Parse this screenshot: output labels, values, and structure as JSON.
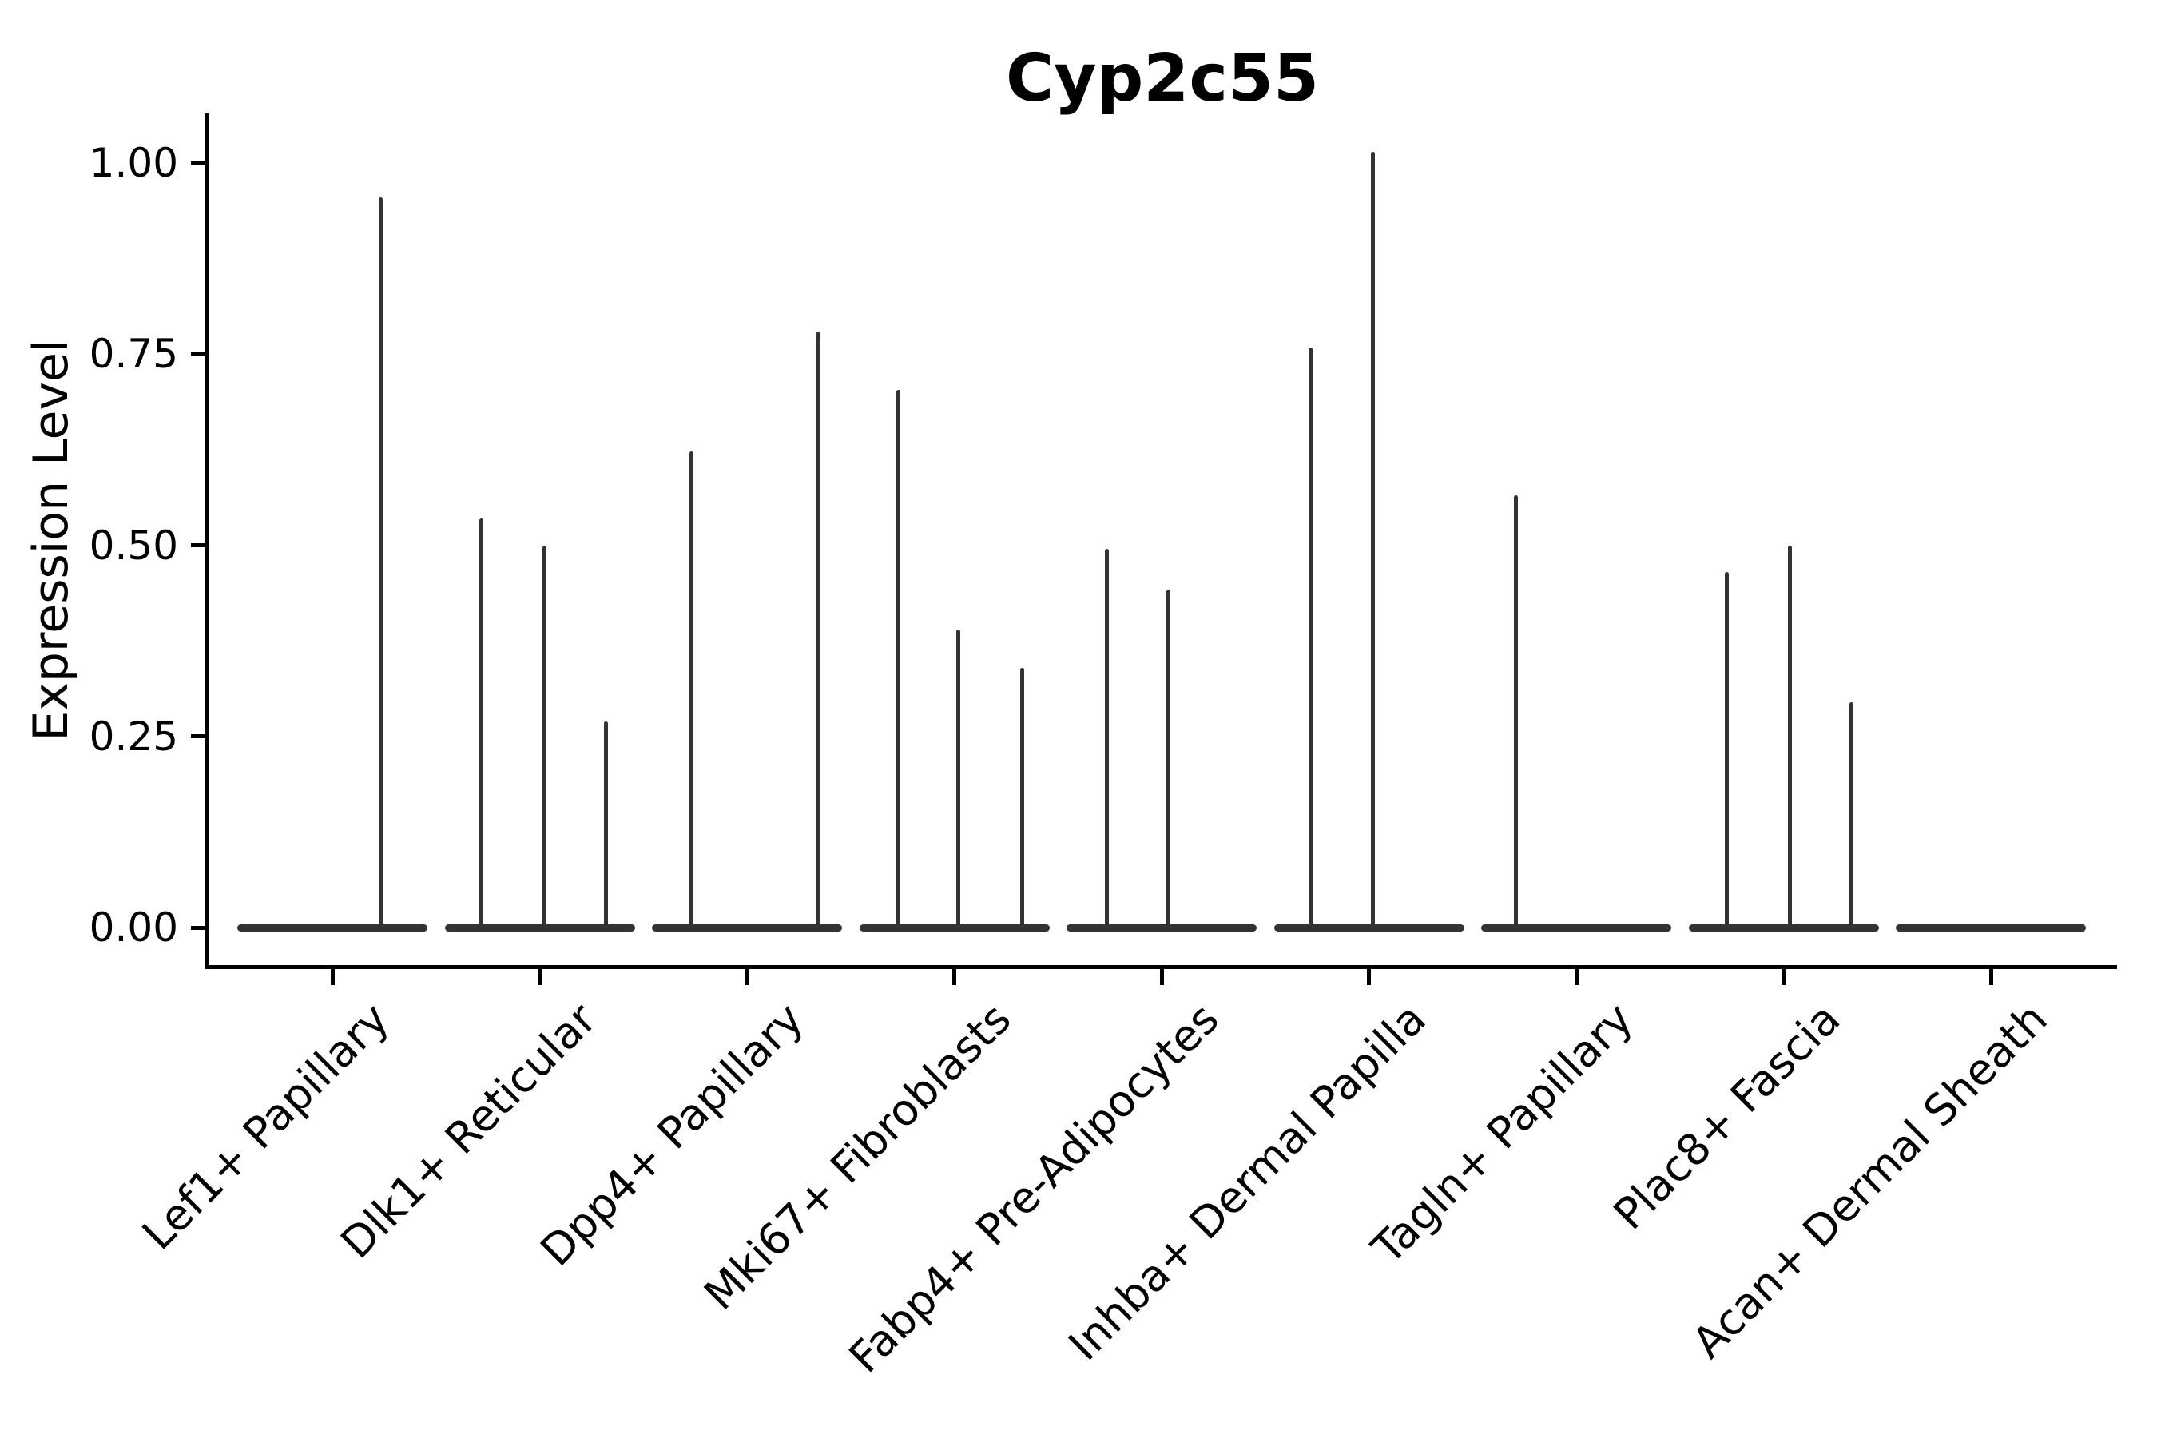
{
  "title": "Cyp2c55",
  "chart_data": {
    "type": "violin",
    "title": "Cyp2c55",
    "xlabel": "",
    "ylabel": "Expression Level",
    "categories": [
      "Lef1+ Papillary",
      "Dlk1+ Reticular",
      "Dpp4+ Papillary",
      "Mki67+ Fibroblasts",
      "Fabp4+ Pre-Adipocytes",
      "Inhba+ Dermal Papilla",
      "Tagln+ Papillary",
      "Plac8+ Fascia",
      "Acan+ Dermal Sheath"
    ],
    "violins": [
      [
        {
          "value": 0.955,
          "dx": 60
        }
      ],
      [
        {
          "value": 0.535,
          "dx": -73
        },
        {
          "value": 0.5,
          "dx": 6
        },
        {
          "value": 0.27,
          "dx": 83
        }
      ],
      [
        {
          "value": 0.623,
          "dx": -70
        },
        {
          "value": 0.78,
          "dx": 89
        }
      ],
      [
        {
          "value": 0.703,
          "dx": -70
        },
        {
          "value": 0.39,
          "dx": 5
        },
        {
          "value": 0.34,
          "dx": 85
        }
      ],
      [
        {
          "value": 0.495,
          "dx": -69
        },
        {
          "value": 0.442,
          "dx": 8
        }
      ],
      [
        {
          "value": 0.759,
          "dx": -73
        },
        {
          "value": 1.015,
          "dx": 5
        }
      ],
      [
        {
          "value": 0.565,
          "dx": -76
        }
      ],
      [
        {
          "value": 0.465,
          "dx": -71
        },
        {
          "value": 0.5,
          "dx": 8
        },
        {
          "value": 0.295,
          "dx": 85
        }
      ],
      []
    ],
    "baseline_value": 0,
    "ytick_values": [
      0,
      0.25,
      0.5,
      0.75,
      1.0
    ],
    "ytick_labels": [
      "0.00",
      "0.25",
      "0.50",
      "0.75",
      "1.00"
    ],
    "ylim": [
      -0.051,
      1.065
    ],
    "grid": false,
    "legend": "none",
    "colors": {
      "violin_line": "#333333",
      "axis": "#000000",
      "text": "#000000",
      "background": "#ffffff"
    }
  }
}
